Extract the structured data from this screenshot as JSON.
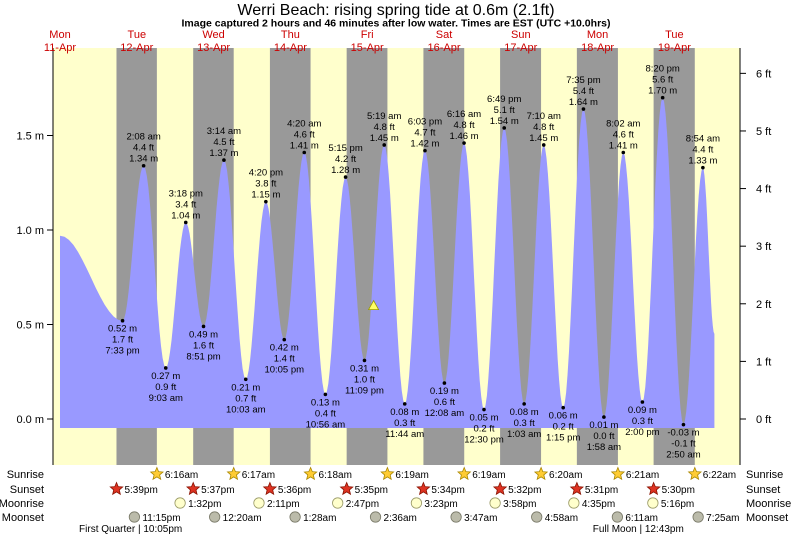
{
  "header": {
    "title": "Werri Beach: rising  spring tide at 0.6m (2.1ft)",
    "subtitle": "Image captured 2 hours and 46 minutes after low water. Times are EST (UTC +10.0hrs)"
  },
  "colors": {
    "day": "#ffffcc",
    "night": "#999999",
    "water": "#9999ff",
    "header_text": "#cc0000",
    "marker": "#ffff66"
  },
  "chart_data": {
    "type": "area",
    "y_axis_left": {
      "unit": "m",
      "range": [
        -0.1,
        1.92
      ],
      "ticks": [
        {
          "v": 0.0,
          "label": "0.0 m"
        },
        {
          "v": 0.5,
          "label": "0.5 m"
        },
        {
          "v": 1.0,
          "label": "1.0 m"
        },
        {
          "v": 1.5,
          "label": "1.5 m"
        }
      ]
    },
    "y_axis_right": {
      "unit": "ft",
      "ticks": [
        {
          "ft": 0,
          "label": "0 ft"
        },
        {
          "ft": 1,
          "label": "1 ft"
        },
        {
          "ft": 2,
          "label": "2 ft"
        },
        {
          "ft": 3,
          "label": "3 ft"
        },
        {
          "ft": 4,
          "label": "4 ft"
        },
        {
          "ft": 5,
          "label": "5 ft"
        },
        {
          "ft": 6,
          "label": "6 ft"
        }
      ]
    },
    "x_range_hours": [
      0,
      216
    ],
    "days": [
      {
        "dow": "Mon",
        "date": "11-Apr"
      },
      {
        "dow": "Tue",
        "date": "12-Apr"
      },
      {
        "dow": "Wed",
        "date": "13-Apr"
      },
      {
        "dow": "Thu",
        "date": "14-Apr"
      },
      {
        "dow": "Fri",
        "date": "15-Apr"
      },
      {
        "dow": "Sat",
        "date": "16-Apr"
      },
      {
        "dow": "Sun",
        "date": "17-Apr"
      },
      {
        "dow": "Mon",
        "date": "18-Apr"
      },
      {
        "dow": "Tue",
        "date": "19-Apr"
      }
    ],
    "start_level_m": 0.97,
    "end_level_m": 0.45,
    "current": {
      "t": 98.0,
      "m": 0.6
    },
    "tides": [
      {
        "t": 19.55,
        "m": 0.52,
        "ft": "1.7 ft",
        "time": "7:33 pm",
        "type": "low"
      },
      {
        "t": 26.13,
        "m": 1.34,
        "ft": "4.4 ft",
        "time": "2:08 am",
        "type": "high"
      },
      {
        "t": 33.05,
        "m": 0.27,
        "ft": "0.9 ft",
        "time": "9:03 am",
        "type": "low"
      },
      {
        "t": 39.3,
        "m": 1.04,
        "ft": "3.4 ft",
        "time": "3:18 pm",
        "type": "high"
      },
      {
        "t": 44.85,
        "m": 0.49,
        "ft": "1.6 ft",
        "time": "8:51 pm",
        "type": "low"
      },
      {
        "t": 51.23,
        "m": 1.37,
        "ft": "4.5 ft",
        "time": "3:14 am",
        "type": "high"
      },
      {
        "t": 58.05,
        "m": 0.21,
        "ft": "0.7 ft",
        "time": "10:03 am",
        "type": "low"
      },
      {
        "t": 64.33,
        "m": 1.15,
        "ft": "3.8 ft",
        "time": "4:20 pm",
        "type": "high"
      },
      {
        "t": 70.08,
        "m": 0.42,
        "ft": "1.4 ft",
        "time": "10:05 pm",
        "type": "low"
      },
      {
        "t": 76.33,
        "m": 1.41,
        "ft": "4.6 ft",
        "time": "4:20 am",
        "type": "high"
      },
      {
        "t": 82.93,
        "m": 0.13,
        "ft": "0.4 ft",
        "time": "10:56 am",
        "type": "low"
      },
      {
        "t": 89.25,
        "m": 1.28,
        "ft": "4.2 ft",
        "time": "5:15 pm",
        "type": "high"
      },
      {
        "t": 95.15,
        "m": 0.31,
        "ft": "1.0 ft",
        "time": "11:09 pm",
        "type": "low"
      },
      {
        "t": 101.32,
        "m": 1.45,
        "ft": "4.8 ft",
        "time": "5:19 am",
        "type": "high"
      },
      {
        "t": 107.73,
        "m": 0.08,
        "ft": "0.3 ft",
        "time": "11:44 am",
        "type": "low"
      },
      {
        "t": 114.05,
        "m": 1.42,
        "ft": "4.7 ft",
        "time": "6:03 pm",
        "type": "high"
      },
      {
        "t": 120.13,
        "m": 0.19,
        "ft": "0.6 ft",
        "time": "12:08 am",
        "type": "low"
      },
      {
        "t": 126.27,
        "m": 1.46,
        "ft": "4.8 ft",
        "time": "6:16 am",
        "type": "high"
      },
      {
        "t": 132.5,
        "m": 0.05,
        "ft": "0.2 ft",
        "time": "12:30 pm",
        "type": "low"
      },
      {
        "t": 138.82,
        "m": 1.54,
        "ft": "5.1 ft",
        "time": "6:49 pm",
        "type": "high"
      },
      {
        "t": 145.05,
        "m": 0.08,
        "ft": "0.3 ft",
        "time": "1:03 am",
        "type": "low"
      },
      {
        "t": 151.17,
        "m": 1.45,
        "ft": "4.8 ft",
        "time": "7:10 am",
        "type": "high"
      },
      {
        "t": 157.25,
        "m": 0.06,
        "ft": "0.2 ft",
        "time": "1:15 pm",
        "type": "low"
      },
      {
        "t": 163.58,
        "m": 1.64,
        "ft": "5.4 ft",
        "time": "7:35 pm",
        "type": "high"
      },
      {
        "t": 169.97,
        "m": 0.01,
        "ft": "0.0 ft",
        "time": "1:58 am",
        "type": "low"
      },
      {
        "t": 176.03,
        "m": 1.41,
        "ft": "4.6 ft",
        "time": "8:02 am",
        "type": "high"
      },
      {
        "t": 182.0,
        "m": 0.09,
        "ft": "0.3 ft",
        "time": "2:00 pm",
        "type": "low"
      },
      {
        "t": 188.33,
        "m": 1.7,
        "ft": "5.6 ft",
        "time": "8:20 pm",
        "type": "high"
      },
      {
        "t": 194.83,
        "m": -0.03,
        "ft": "-0.1 ft",
        "time": "2:50 am",
        "type": "low"
      },
      {
        "t": 200.9,
        "m": 1.33,
        "ft": "4.4 ft",
        "time": "8:54 am",
        "type": "high"
      }
    ],
    "sunrise": [
      {
        "t": 30.27,
        "time": "6:16am"
      },
      {
        "t": 54.28,
        "time": "6:17am"
      },
      {
        "t": 78.3,
        "time": "6:18am"
      },
      {
        "t": 102.32,
        "time": "6:19am"
      },
      {
        "t": 126.32,
        "time": "6:19am"
      },
      {
        "t": 150.33,
        "time": "6:20am"
      },
      {
        "t": 174.35,
        "time": "6:21am"
      },
      {
        "t": 198.37,
        "time": "6:22am"
      }
    ],
    "sunset": [
      {
        "t": 17.65,
        "time": "5:39pm"
      },
      {
        "t": 41.62,
        "time": "5:37pm"
      },
      {
        "t": 65.6,
        "time": "5:36pm"
      },
      {
        "t": 89.58,
        "time": "5:35pm"
      },
      {
        "t": 113.57,
        "time": "5:34pm"
      },
      {
        "t": 137.53,
        "time": "5:32pm"
      },
      {
        "t": 161.52,
        "time": "5:31pm"
      },
      {
        "t": 185.5,
        "time": "5:30pm"
      }
    ],
    "moonrise": [
      {
        "t": 37.53,
        "time": "1:32pm"
      },
      {
        "t": 62.18,
        "time": "2:11pm"
      },
      {
        "t": 86.78,
        "time": "2:47pm"
      },
      {
        "t": 111.38,
        "time": "3:23pm"
      },
      {
        "t": 135.97,
        "time": "3:58pm"
      },
      {
        "t": 160.58,
        "time": "4:35pm"
      },
      {
        "t": 185.27,
        "time": "5:16pm"
      }
    ],
    "moonset": [
      {
        "t": 23.25,
        "time": "11:15pm"
      },
      {
        "t": 48.33,
        "time": "12:20am"
      },
      {
        "t": 73.47,
        "time": "1:28am"
      },
      {
        "t": 98.6,
        "time": "2:36am"
      },
      {
        "t": 123.78,
        "time": "3:47am"
      },
      {
        "t": 148.97,
        "time": "4:58am"
      },
      {
        "t": 174.18,
        "time": "6:11am"
      },
      {
        "t": 199.42,
        "time": "7:25am"
      }
    ],
    "row_labels": [
      "Sunrise",
      "Sunset",
      "Moonrise",
      "Moonset"
    ],
    "moon_phases": [
      {
        "t": 22.08,
        "text": "First Quarter | 10:05pm"
      },
      {
        "t": 180.72,
        "text": "Full Moon | 12:43pm"
      }
    ]
  }
}
